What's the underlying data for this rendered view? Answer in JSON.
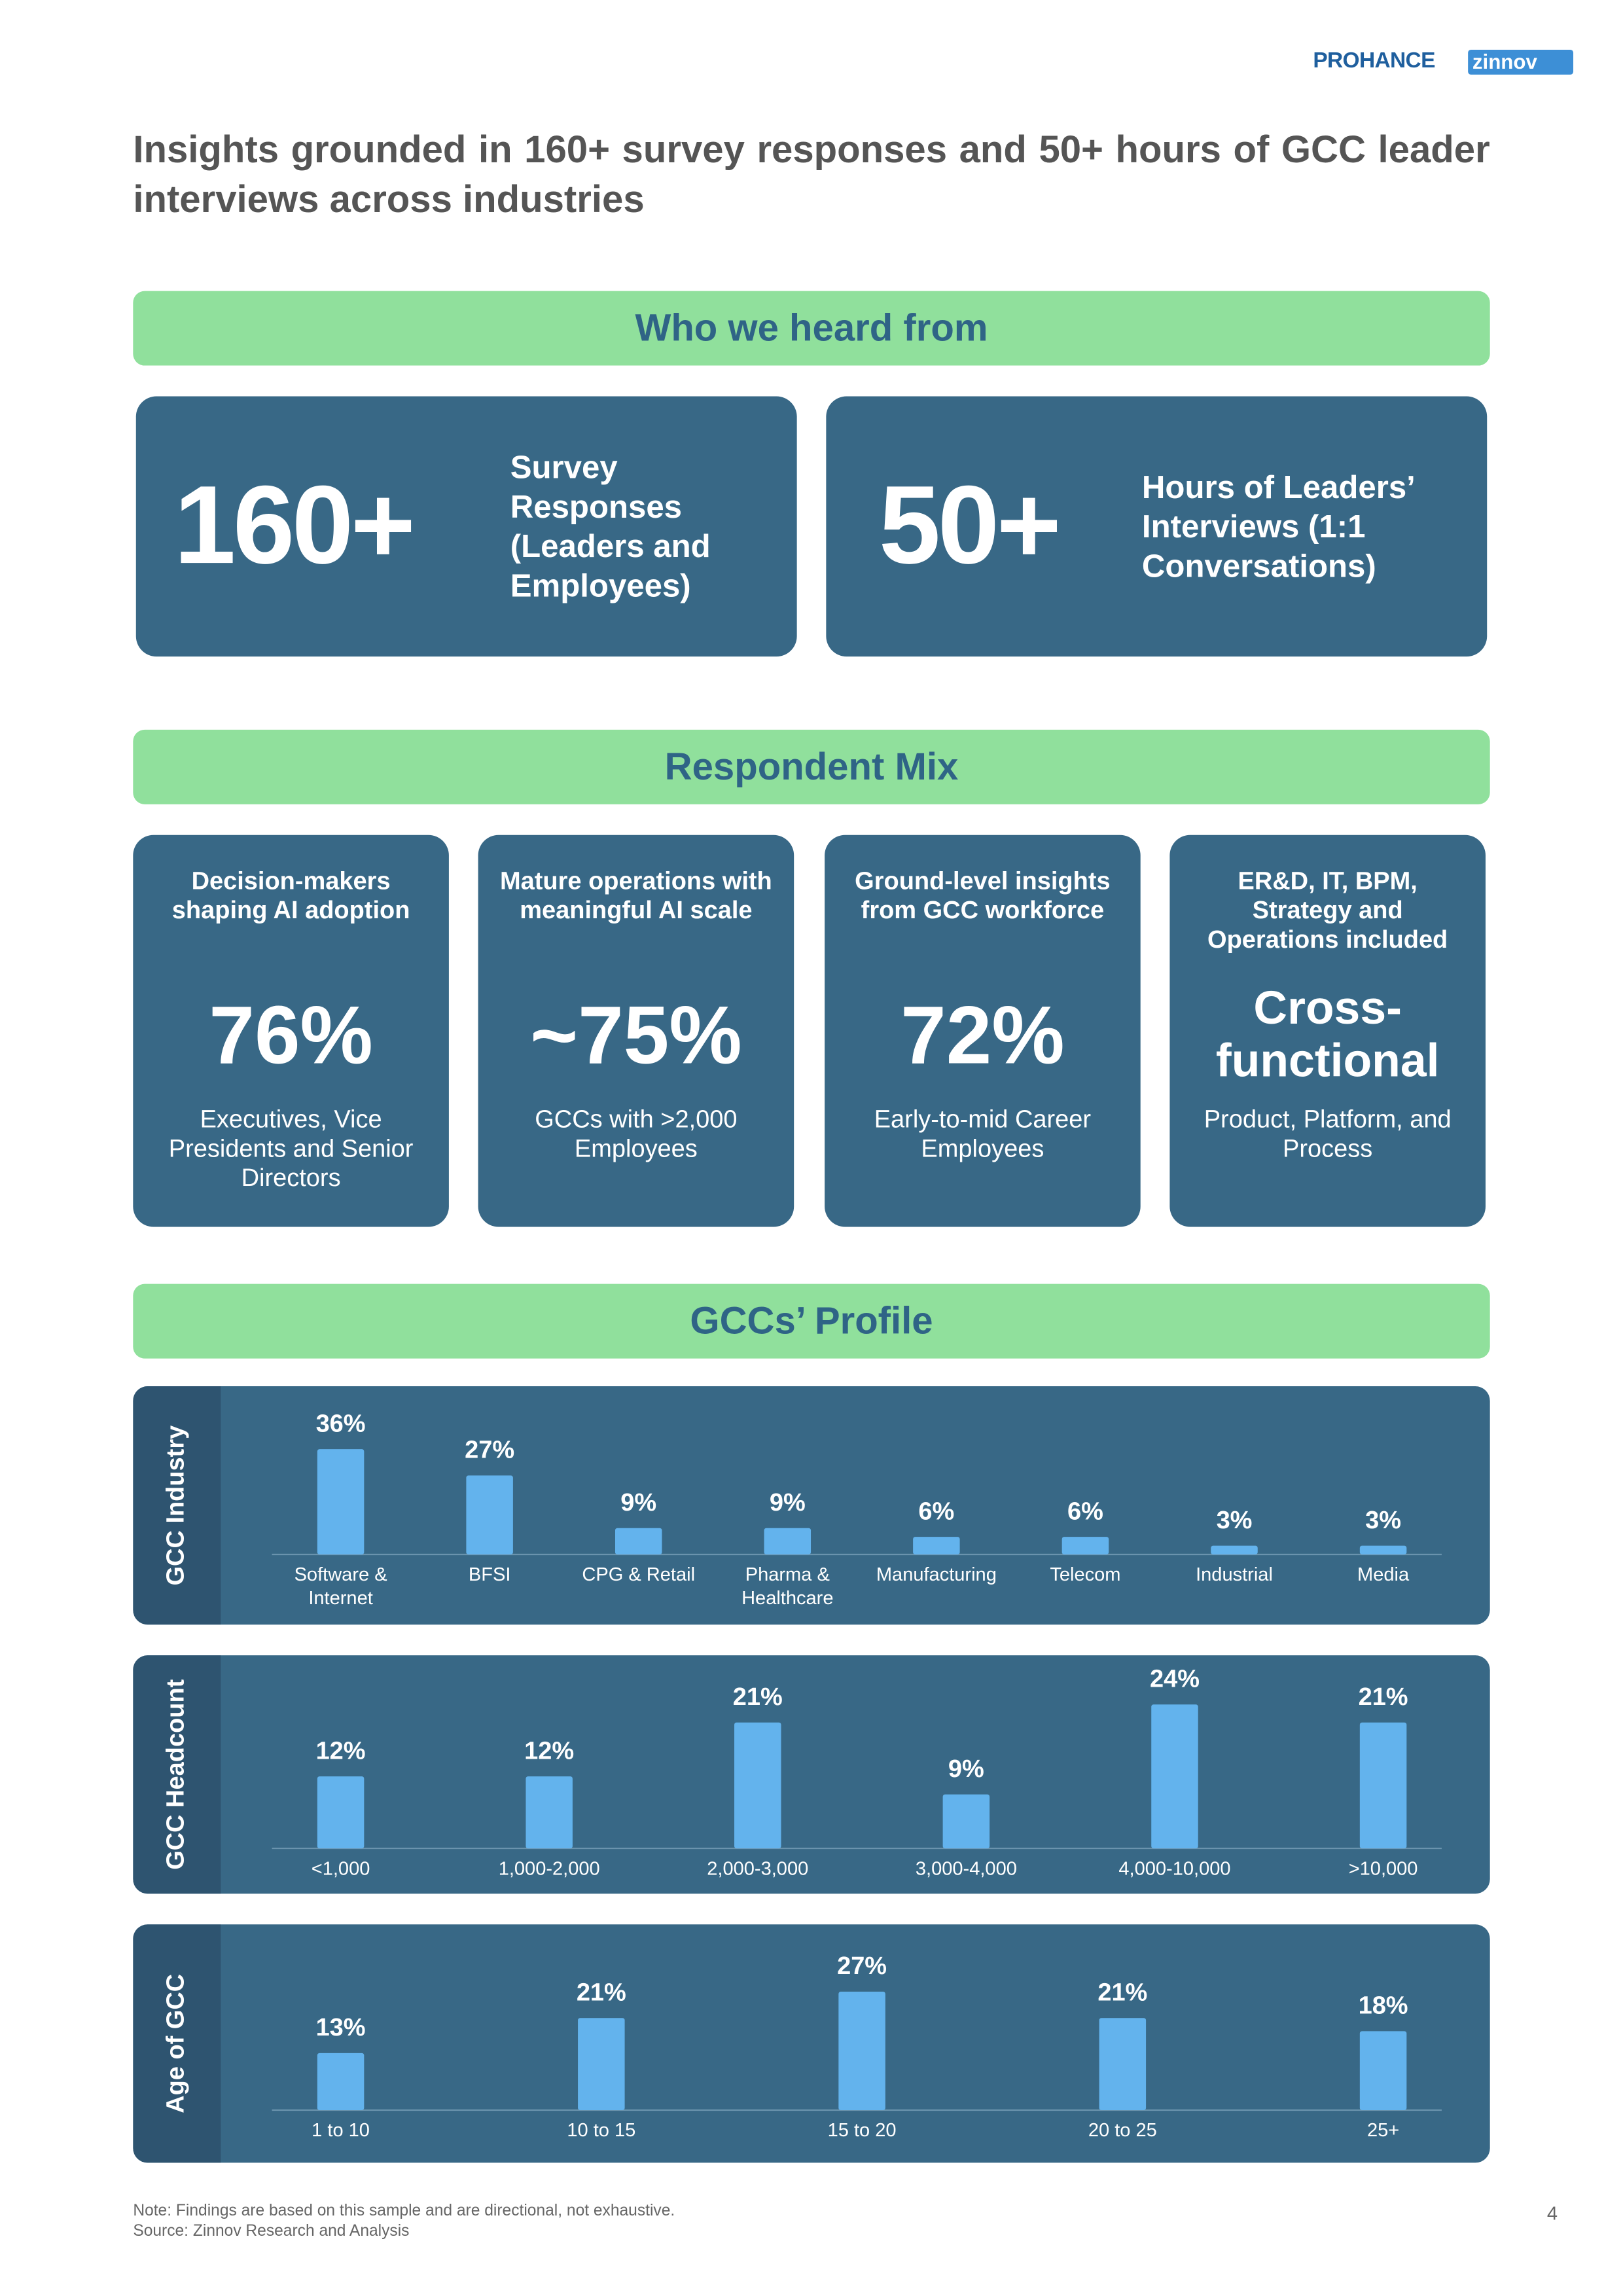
{
  "header": {
    "logos": [
      "PROHANCE",
      "zinnov"
    ]
  },
  "title": "Insights grounded in 160+ survey responses and 50+ hours of GCC leader interviews across industries",
  "sections": [
    "Who we heard from",
    "Respondent Mix",
    "GCCs’ Profile"
  ],
  "stats": [
    {
      "value": "160+",
      "label": "Survey Responses (Leaders and Employees)"
    },
    {
      "value": "50+",
      "label": "Hours of Leaders’ Interviews (1:1 Conversations)"
    }
  ],
  "mix": [
    {
      "heading": "Decision-makers shaping AI adoption",
      "value": "76%",
      "description": "Executives, Vice Presidents and Senior Directors"
    },
    {
      "heading": "Mature operations with meaningful AI scale",
      "value": "~75%",
      "description": "GCCs with >2,000 Employees"
    },
    {
      "heading": "Ground-level insights from GCC workforce",
      "value": "72%",
      "description": "Early-to-mid Career Employees"
    },
    {
      "heading": "ER&D, IT, BPM, Strategy and Operations included",
      "value": "Cross-functional",
      "description": "Product, Platform, and Process"
    }
  ],
  "chart_data": [
    {
      "type": "bar",
      "title": "GCC Industry",
      "categories": [
        "Software & Internet",
        "BFSI",
        "CPG & Retail",
        "Pharma & Healthcare",
        "Manufacturing",
        "Telecom",
        "Industrial",
        "Media"
      ],
      "values": [
        36,
        27,
        9,
        9,
        6,
        6,
        3,
        3
      ],
      "value_labels": [
        "36%",
        "27%",
        "9%",
        "9%",
        "6%",
        "6%",
        "3%",
        "3%"
      ],
      "color": "#63b3ed"
    },
    {
      "type": "bar",
      "title": "GCC Headcount",
      "categories": [
        "<1,000",
        "1,000-2,000",
        "2,000-3,000",
        "3,000-4,000",
        "4,000-10,000",
        ">10,000"
      ],
      "values": [
        12,
        12,
        21,
        9,
        24,
        21
      ],
      "value_labels": [
        "12%",
        "12%",
        "21%",
        "9%",
        "24%",
        "21%"
      ],
      "color": "#63b3ed"
    },
    {
      "type": "bar",
      "title": "Age of GCC",
      "categories": [
        "1 to 10",
        "10 to 15",
        "15 to 20",
        "20 to 25",
        "25+"
      ],
      "values": [
        13,
        21,
        27,
        21,
        18
      ],
      "value_labels": [
        "13%",
        "21%",
        "27%",
        "21%",
        "18%"
      ],
      "color": "#63b3ed"
    }
  ],
  "footer": {
    "note": "Note: Findings are based on this sample and are directional, not exhaustive.",
    "source": "Source: Zinnov Research and Analysis",
    "page": "4"
  }
}
